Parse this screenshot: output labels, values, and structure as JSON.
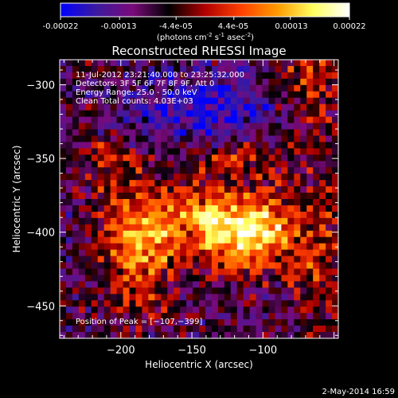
{
  "colorbar": {
    "ticks": [
      "-0.00022",
      "-0.00013",
      "-4.4e-05",
      "4.4e-05",
      "0.00013",
      "0.00022"
    ],
    "tick_values": [
      -0.00022,
      -0.00013,
      -4.4e-05,
      4.4e-05,
      0.00013,
      0.00022
    ],
    "range": [
      -0.00022,
      0.00022
    ],
    "units_main": "(photons cm",
    "units_sup1": "-2",
    "units_mid": " s",
    "units_sup2": "-1",
    "units_end": " asec",
    "units_sup3": "-2",
    "units_close": ")",
    "stops": [
      "#0000ff",
      "#3c1a9e",
      "#7a0a7a",
      "#000000",
      "#b00000",
      "#ff4000",
      "#ff9a00",
      "#ffff60",
      "#ffffff"
    ]
  },
  "chart_data": {
    "type": "heatmap",
    "title": "Reconstructed RHESSI Image",
    "xlabel": "Heliocentric X (arcsec)",
    "ylabel": "Heliocentric Y (arcsec)",
    "xlim": [
      -243,
      -47
    ],
    "ylim": [
      -472,
      -283
    ],
    "xticks": [
      -200,
      -150,
      -100
    ],
    "xtick_labels": [
      "−200",
      "−150",
      "−100"
    ],
    "yticks": [
      -300,
      -350,
      -400,
      -450
    ],
    "ytick_labels": [
      "−300",
      "−350",
      "−400",
      "−450"
    ],
    "peak": [
      -107,
      -399
    ],
    "info_lines": [
      "11-Jul-2012 23:21:40.000 to 23:25:32.000",
      "Detectors: 3F 5F 6F 7F 8F 9F, Att 0",
      "Energy Range: 25.0 - 50.0 keV",
      "Clean    Total counts: 4.03E+03"
    ],
    "peak_text": "Position of Peak = [−107,−399]"
  },
  "footer": {
    "date": "2-May-2014 16:59"
  }
}
